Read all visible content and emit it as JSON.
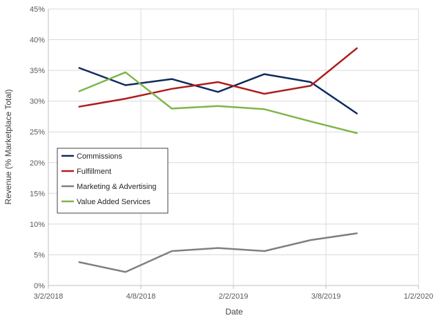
{
  "chart_data": {
    "type": "line",
    "title": "",
    "xlabel": "Date",
    "ylabel": "Revenue (% Marketplace Total)",
    "ylim": [
      0,
      45
    ],
    "xlim": [
      0,
      6
    ],
    "grid": "vertical and horizontal gridlines",
    "legend_position": "center-left",
    "x_tick_labels": [
      "3/2/2018",
      "4/8/2018",
      "2/2/2019",
      "3/8/2019",
      "1/2/2020"
    ],
    "x_tick_positions": [
      0,
      1.5,
      3,
      4.5,
      6
    ],
    "y_ticks": [
      0,
      5,
      10,
      15,
      20,
      25,
      30,
      35,
      40,
      45
    ],
    "y_tick_labels": [
      "0%",
      "5%",
      "10%",
      "15%",
      "20%",
      "25%",
      "30%",
      "35%",
      "40%",
      "45%"
    ],
    "x": [
      0.5,
      1.25,
      2.0,
      2.75,
      3.5,
      4.25,
      5.0
    ],
    "series": [
      {
        "name": "Commissions",
        "color": "#0f2a5c",
        "values": [
          35.4,
          32.6,
          33.6,
          31.5,
          34.4,
          33.1,
          28.0
        ]
      },
      {
        "name": "Fulfillment",
        "color": "#b01c1c",
        "values": [
          29.1,
          30.4,
          32.0,
          33.1,
          31.2,
          32.5,
          38.6
        ]
      },
      {
        "name": "Marketing & Advertising",
        "color": "#7f7f7f",
        "values": [
          3.8,
          2.2,
          5.6,
          6.1,
          5.6,
          7.4,
          8.5
        ]
      },
      {
        "name": "Value Added Services",
        "color": "#7db54a",
        "values": [
          31.6,
          34.7,
          28.8,
          29.2,
          28.7,
          26.7,
          24.8
        ]
      }
    ]
  }
}
